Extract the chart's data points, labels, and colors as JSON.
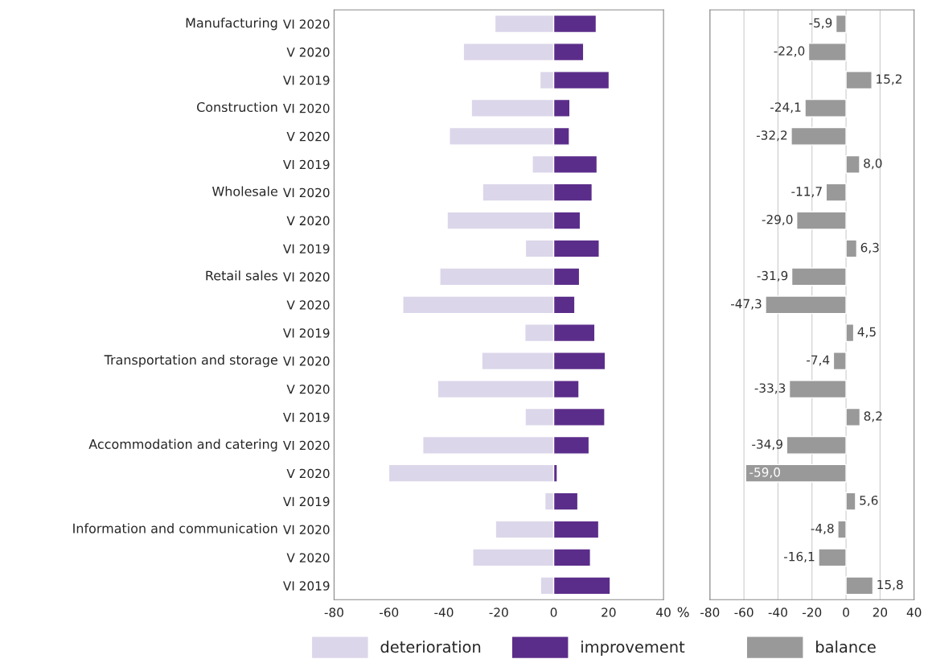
{
  "chart_data": [
    {
      "type": "bar",
      "orientation": "horizontal",
      "stacked": true,
      "xlabel": "%",
      "legend": "bottom",
      "categories": [
        "VI 2020",
        "V 2020",
        "VI 2019",
        "VI 2020",
        "V 2020",
        "VI 2019",
        "VI 2020",
        "V 2020",
        "VI 2019",
        "VI 2020",
        "V 2020",
        "VI 2019",
        "VI 2020",
        "V 2020",
        "VI 2019",
        "VI 2020",
        "V 2020",
        "VI 2019",
        "VI 2020",
        "V 2020",
        "VI 2019"
      ],
      "series": [
        {
          "name": "deterioration",
          "color": "#dcd6ea",
          "values": [
            -21.4,
            -32.9,
            -5.0,
            -30.0,
            -38.0,
            -7.8,
            -25.9,
            -38.8,
            -10.3,
            -41.5,
            -55.0,
            -10.5,
            -26.2,
            -42.3,
            -10.4,
            -47.7,
            -60.1,
            -3.2,
            -21.2,
            -29.5,
            -4.8
          ]
        },
        {
          "name": "improvement",
          "color": "#5b2d8a",
          "values": [
            15.5,
            10.9,
            20.2,
            5.9,
            5.7,
            15.8,
            14.0,
            9.7,
            16.6,
            9.4,
            7.7,
            15.0,
            18.8,
            9.2,
            18.6,
            12.9,
            1.3,
            8.8,
            16.4,
            13.4,
            20.6
          ]
        }
      ],
      "xlim": [
        -80,
        40
      ],
      "xticks": [
        -80,
        -60,
        -40,
        -20,
        0,
        20,
        40
      ],
      "annotations": [
        "Manufacturing",
        "Construction",
        "Wholesale",
        "Retail sales",
        "Transportation and storage",
        "Accommodation and catering",
        "Information and communication"
      ]
    },
    {
      "type": "bar",
      "orientation": "horizontal",
      "legend": "bottom",
      "grid": "x",
      "tick_labels": "x",
      "categories": [
        null,
        null,
        null,
        null,
        null,
        null,
        null,
        null,
        null,
        null,
        null,
        null,
        null,
        null,
        null,
        null,
        null,
        null,
        null,
        null,
        null
      ],
      "series": [
        {
          "name": "balance",
          "color": "#999999",
          "values": [
            -5.9,
            -22.0,
            15.2,
            -24.1,
            -32.2,
            8.0,
            -11.7,
            -29.0,
            6.3,
            -31.9,
            -47.3,
            4.5,
            -7.4,
            -33.3,
            8.2,
            -34.9,
            -59.0,
            5.6,
            -4.8,
            -16.1,
            15.8
          ],
          "value_labels": [
            "-5,9",
            "-22,0",
            "15,2",
            "-24,1",
            "-32,2",
            "8,0",
            "-11,7",
            "-29,0",
            "6,3",
            "-31,9",
            "-47,3",
            "4,5",
            "-7,4",
            "-33,3",
            "8,2",
            "-34,9",
            "-59,0",
            "5,6",
            "-4,8",
            "-16,1",
            "15,8"
          ]
        }
      ],
      "xlim": [
        -80,
        40
      ],
      "xticks": [
        -80,
        -60,
        -40,
        -20,
        0,
        20,
        40
      ]
    }
  ]
}
